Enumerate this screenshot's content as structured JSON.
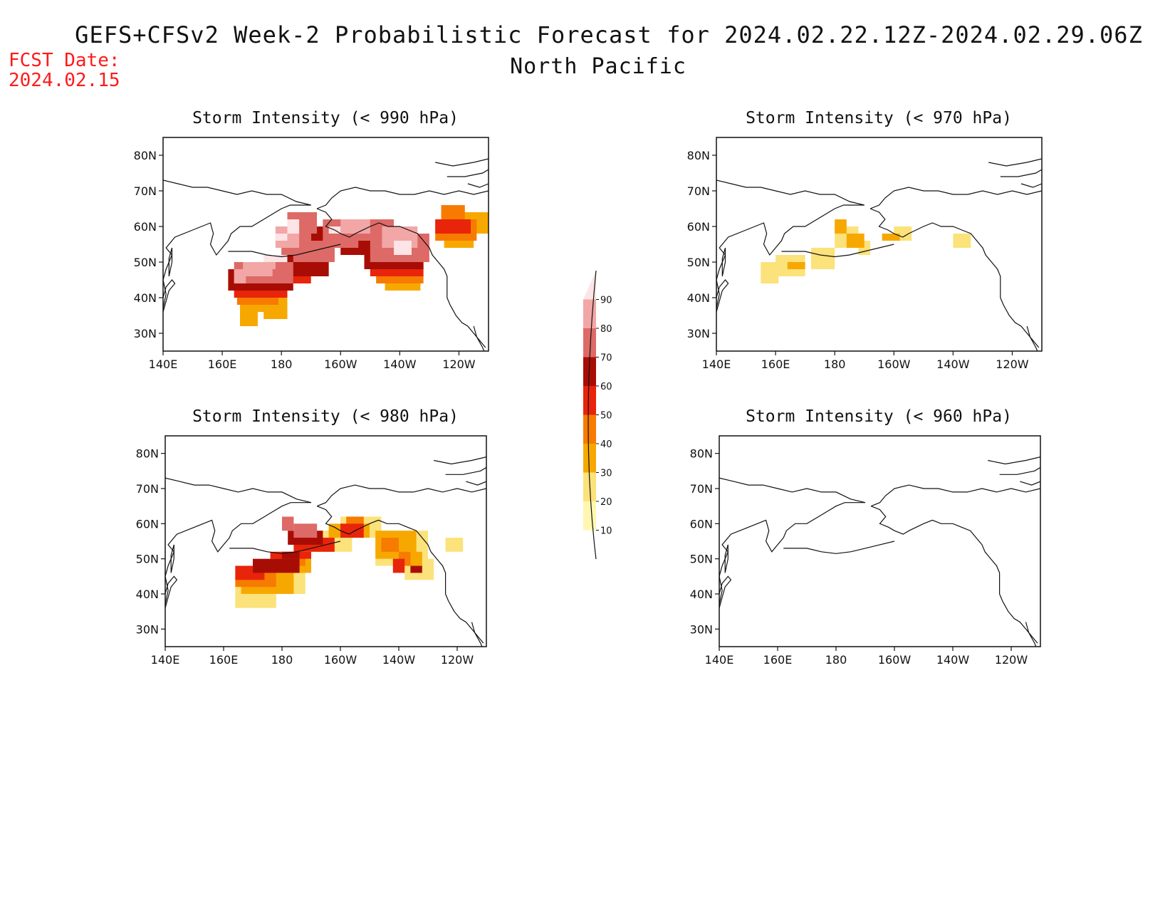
{
  "header": {
    "title": "GEFS+CFSv2 Week-2 Probabilistic Forecast for 2024.02.22.12Z-2024.02.29.06Z",
    "subtitle": "North Pacific",
    "fcst_label": "FCST Date:",
    "fcst_date": "2024.02.15",
    "fcst_color": "#ff1a1a"
  },
  "axes": {
    "lat_labels": [
      "80N",
      "70N",
      "60N",
      "50N",
      "40N",
      "30N"
    ],
    "lon_labels": [
      "140E",
      "160E",
      "180",
      "160W",
      "140W",
      "120W"
    ]
  },
  "colorbar": {
    "levels": [
      "10",
      "20",
      "30",
      "40",
      "50",
      "60",
      "70",
      "80",
      "90"
    ],
    "colors": [
      "#fff7b0",
      "#fbe27a",
      "#f7a800",
      "#f77b00",
      "#e8240a",
      "#a80d05",
      "#dd6a66",
      "#f2a6a6",
      "#fde4e6"
    ]
  },
  "panels": [
    {
      "title": "Storm Intensity (< 990 hPa)",
      "map_fill": [
        {
          "level": 2,
          "cells": [
            [
              -190,
              36,
              10,
              8
            ],
            [
              -194,
              32,
              6,
              6
            ],
            [
              -186,
              34,
              8,
              6
            ],
            [
              -145,
              42,
              12,
              8
            ],
            [
              -124,
              58,
              14,
              6
            ],
            [
              -125,
              54,
              10,
              4
            ]
          ]
        },
        {
          "level": 3,
          "cells": [
            [
              -195,
              38,
              14,
              8
            ],
            [
              -148,
              44,
              16,
              8
            ],
            [
              -128,
              56,
              14,
              6
            ],
            [
              -126,
              62,
              8,
              4
            ]
          ]
        },
        {
          "level": 4,
          "cells": [
            [
              -196,
              40,
              18,
              8
            ],
            [
              -184,
              44,
              14,
              6
            ],
            [
              -150,
              46,
              18,
              6
            ],
            [
              -128,
              58,
              12,
              4
            ]
          ]
        },
        {
          "level": 5,
          "cells": [
            [
              -198,
              42,
              22,
              6
            ],
            [
              -180,
              46,
              16,
              6
            ],
            [
              -160,
              52,
              14,
              6
            ],
            [
              -170,
              56,
              14,
              4
            ],
            [
              -152,
              48,
              20,
              6
            ]
          ]
        },
        {
          "level": 6,
          "cells": [
            [
              -196,
              44,
              20,
              6
            ],
            [
              -176,
              50,
              14,
              6
            ],
            [
              -166,
              54,
              12,
              8
            ],
            [
              -156,
              56,
              14,
              6
            ],
            [
              -150,
              50,
              20,
              8
            ],
            [
              -178,
              58,
              10,
              6
            ],
            [
              -180,
              52,
              10,
              6
            ]
          ]
        },
        {
          "level": 7,
          "cells": [
            [
              -193,
              46,
              10,
              4
            ],
            [
              -160,
              58,
              10,
              4
            ],
            [
              -146,
              54,
              12,
              6
            ],
            [
              -182,
              54,
              8,
              6
            ],
            [
              -190,
              48,
              8,
              2
            ],
            [
              -196,
              44,
              4,
              4
            ]
          ]
        },
        {
          "level": 8,
          "cells": [
            [
              -186,
              50,
              8,
              2
            ],
            [
              -142,
              52,
              6,
              4
            ],
            [
              -178,
              58,
              4,
              4
            ],
            [
              -164,
              58,
              4,
              2
            ],
            [
              -182,
              56,
              4,
              2
            ]
          ]
        }
      ]
    },
    {
      "title": "Storm Intensity (< 970 hPa)",
      "map_fill": [
        {
          "level": 1,
          "cells": [
            [
              -205,
              44,
              6,
              6
            ],
            [
              -200,
              46,
              10,
              6
            ],
            [
              -188,
              48,
              8,
              6
            ],
            [
              -180,
              54,
              8,
              6
            ],
            [
              -172,
              52,
              4,
              4
            ],
            [
              -160,
              56,
              6,
              4
            ],
            [
              -140,
              54,
              6,
              4
            ]
          ]
        },
        {
          "level": 2,
          "cells": [
            [
              -180,
              58,
              4,
              4
            ],
            [
              -176,
              54,
              6,
              4
            ],
            [
              -164,
              56,
              6,
              2
            ],
            [
              -196,
              48,
              6,
              2
            ]
          ]
        }
      ]
    },
    {
      "title": "Storm Intensity (< 980 hPa)",
      "map_fill": [
        {
          "level": 1,
          "cells": [
            [
              -196,
              36,
              14,
              10
            ],
            [
              -184,
              40,
              12,
              8
            ],
            [
              -168,
              52,
              12,
              6
            ],
            [
              -156,
              56,
              10,
              6
            ],
            [
              -148,
              48,
              18,
              10
            ],
            [
              -138,
              44,
              10,
              6
            ],
            [
              -124,
              52,
              6,
              4
            ],
            [
              -160,
              60,
              10,
              2
            ]
          ]
        },
        {
          "level": 2,
          "cells": [
            [
              -194,
              40,
              18,
              6
            ],
            [
              -180,
              46,
              10,
              4
            ],
            [
              -164,
              56,
              14,
              4
            ],
            [
              -148,
              50,
              14,
              8
            ],
            [
              -140,
              48,
              8,
              4
            ]
          ]
        },
        {
          "level": 3,
          "cells": [
            [
              -196,
              42,
              14,
              6
            ],
            [
              -182,
              48,
              10,
              4
            ],
            [
              -158,
              58,
              6,
              4
            ],
            [
              -146,
              52,
              6,
              4
            ],
            [
              -140,
              48,
              4,
              4
            ]
          ]
        },
        {
          "level": 4,
          "cells": [
            [
              -196,
              44,
              10,
              4
            ],
            [
              -184,
              50,
              14,
              2
            ],
            [
              -176,
              52,
              14,
              4
            ],
            [
              -160,
              56,
              8,
              4
            ],
            [
              -142,
              46,
              4,
              4
            ]
          ]
        },
        {
          "level": 5,
          "cells": [
            [
              -190,
              46,
              16,
              4
            ],
            [
              -178,
              54,
              12,
              4
            ],
            [
              -180,
              50,
              6,
              2
            ],
            [
              -136,
              46,
              4,
              2
            ]
          ]
        },
        {
          "level": 6,
          "cells": [
            [
              -176,
              56,
              8,
              4
            ],
            [
              -180,
              58,
              4,
              4
            ]
          ]
        }
      ]
    },
    {
      "title": "Storm Intensity (< 960 hPa)",
      "map_fill": []
    }
  ]
}
